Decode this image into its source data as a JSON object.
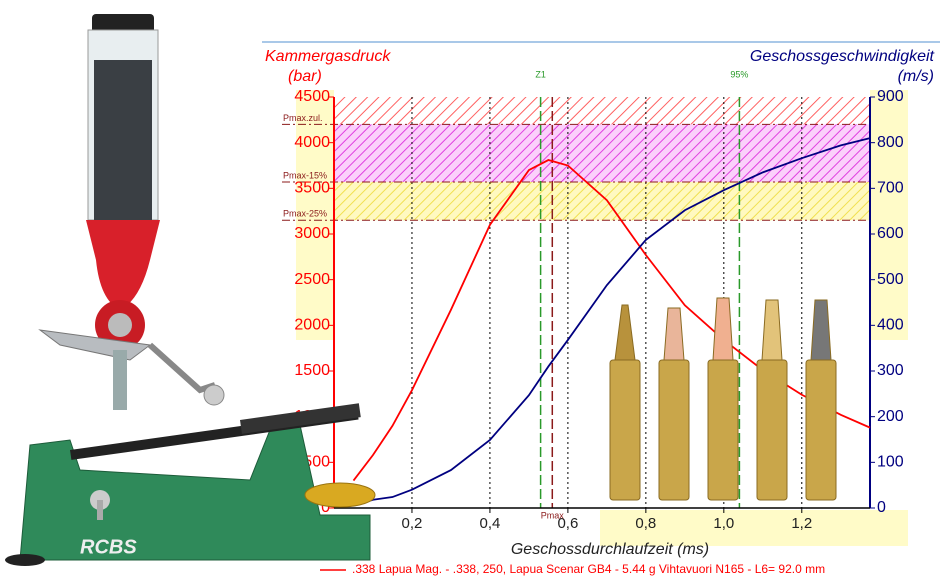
{
  "chart_data": {
    "type": "line",
    "left_label": "Kammergasdruck",
    "left_unit": "(bar)",
    "right_label": "Geschossgeschwindigkeit",
    "right_unit": "(m/s)",
    "x_label": "Geschossdurchlaufzeit (ms)",
    "x": [
      0.05,
      0.1,
      0.15,
      0.2,
      0.3,
      0.4,
      0.5,
      0.55,
      0.6,
      0.7,
      0.8,
      0.9,
      1.0,
      1.1,
      1.2,
      1.3,
      1.375
    ],
    "series": [
      {
        "name": ".338 Lapua Mag. - .338, 250, Lapua Scenar GB4 - 5.44 g Vihtavuori N165 - L6= 92.0 mm",
        "color": "#ff0000",
        "values": [
          300,
          580,
          900,
          1290,
          2170,
          3100,
          3700,
          3810,
          3750,
          3370,
          2770,
          2220,
          1840,
          1510,
          1240,
          1020,
          880
        ]
      },
      {
        "color": "#000080",
        "axis": "y2",
        "values": [
          5,
          18,
          24,
          40,
          83,
          149,
          247,
          310,
          368,
          488,
          587,
          652,
          696,
          735,
          766,
          794,
          810
        ]
      }
    ],
    "xlim": [
      0,
      1.375
    ],
    "xticks": [
      {
        "value": 0.2,
        "label": "0,2"
      },
      {
        "value": 0.4,
        "label": "0,4"
      },
      {
        "value": 0.6,
        "label": "0,6"
      },
      {
        "value": 0.8,
        "label": "0,8"
      },
      {
        "value": 1.0,
        "label": "1,0"
      },
      {
        "value": 1.2,
        "label": "1,2"
      }
    ],
    "ylim": [
      0,
      4500
    ],
    "yticks": [
      0,
      500,
      1000,
      1500,
      2000,
      2500,
      3000,
      3500,
      4000,
      4500
    ],
    "y2lim": [
      0,
      900
    ],
    "y2ticks": [
      0,
      100,
      200,
      300,
      400,
      500,
      600,
      700,
      800,
      900
    ],
    "grid": true,
    "hlines": [
      {
        "label": "Pmax.zul.",
        "value": 4200
      },
      {
        "label": "Pmax-15%",
        "value": 3570
      },
      {
        "label": "Pmax-25%",
        "value": 3150
      }
    ],
    "vlines": [
      {
        "label": "Z1",
        "value": 0.53,
        "color": "#2a9a2a"
      },
      {
        "label": "95%",
        "value": 1.04,
        "color": "#2a9a2a"
      },
      {
        "label": "Pmax",
        "value": 0.56,
        "color": "#8b1a1a"
      }
    ]
  }
}
